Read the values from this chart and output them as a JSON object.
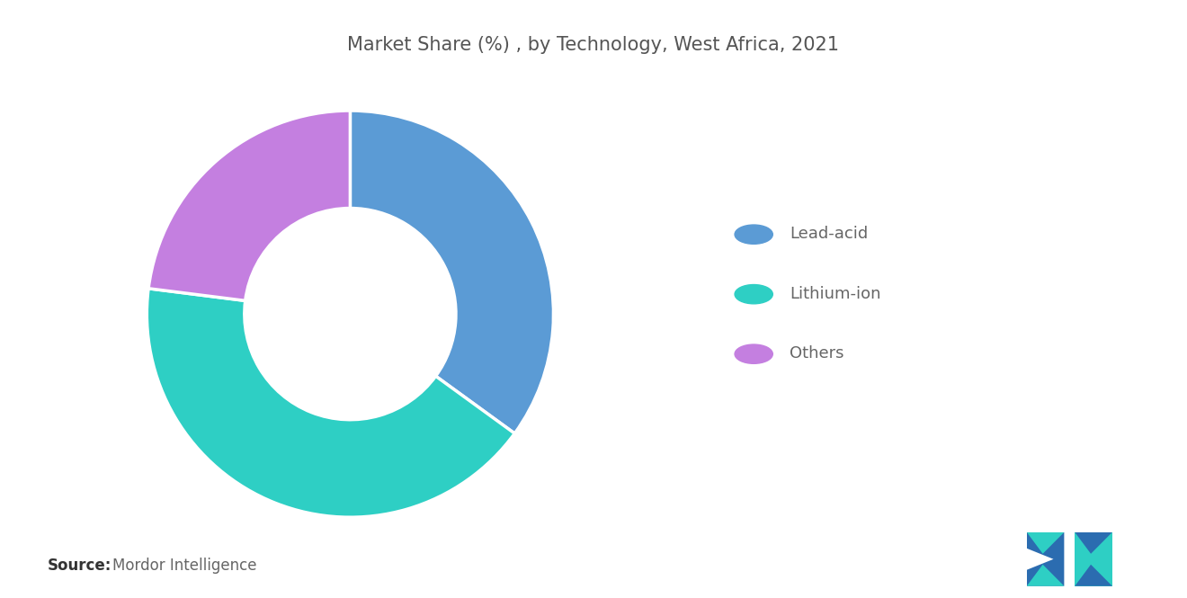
{
  "title": "Market Share (%) , by Technology, West Africa, 2021",
  "labels": [
    "Lead-acid",
    "Lithium-ion",
    "Others"
  ],
  "values": [
    35,
    42,
    23
  ],
  "colors": [
    "#5B9BD5",
    "#2ECFC4",
    "#C47FE0"
  ],
  "legend_labels": [
    "Lead-acid",
    "Lithium-ion",
    "Others"
  ],
  "source_bold": "Source:",
  "source_text": "Mordor Intelligence",
  "bg_color": "#FFFFFF",
  "title_color": "#555555",
  "legend_text_color": "#666666",
  "title_fontsize": 15,
  "legend_fontsize": 13,
  "source_fontsize": 12
}
